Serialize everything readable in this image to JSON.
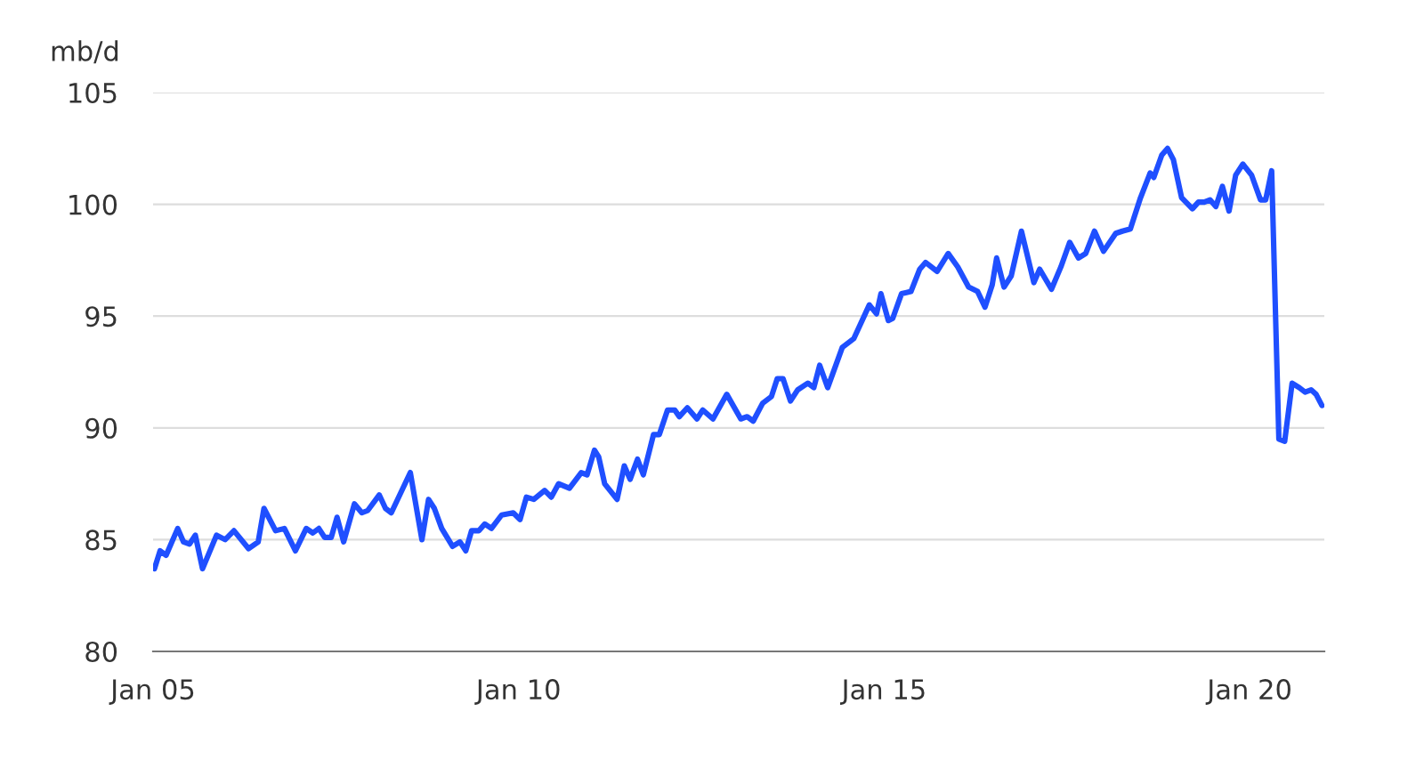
{
  "chart_data": {
    "type": "line",
    "ylabel": "mb/d",
    "x": [
      "2005-01-08",
      "2005-02-05",
      "2005-03-07",
      "2005-05-04",
      "2005-06-02",
      "2005-07-02",
      "2005-07-31",
      "2005-09-05",
      "2005-11-14",
      "2005-12-27",
      "2006-02-09",
      "2006-04-23",
      "2006-06-10",
      "2006-07-09",
      "2006-09-05",
      "2006-10-19",
      "2006-12-13",
      "2007-02-05",
      "2007-03-10",
      "2007-04-09",
      "2007-05-08",
      "2007-06-10",
      "2007-07-09",
      "2007-08-11",
      "2007-10-04",
      "2007-11-10",
      "2007-12-09",
      "2008-02-05",
      "2008-03-07",
      "2008-04-05",
      "2008-07-09",
      "2008-09-05",
      "2008-10-08",
      "2008-11-06",
      "2008-12-13",
      "2009-02-05",
      "2009-03-14",
      "2009-04-12",
      "2009-05-11",
      "2009-06-17",
      "2009-07-16",
      "2009-08-18",
      "2009-10-08",
      "2009-12-05",
      "2010-01-08",
      "2010-02-09",
      "2010-03-18",
      "2010-05-11",
      "2010-06-13",
      "2010-07-20",
      "2010-09-12",
      "2010-11-10",
      "2010-12-09",
      "2011-01-15",
      "2011-02-05",
      "2011-03-07",
      "2011-05-08",
      "2011-06-13",
      "2011-07-12",
      "2011-08-18",
      "2011-09-16",
      "2011-11-06",
      "2011-12-05",
      "2012-01-15",
      "2012-02-20",
      "2012-03-14",
      "2012-04-23",
      "2012-06-10",
      "2012-07-09",
      "2012-08-29",
      "2012-11-06",
      "2013-01-15",
      "2013-02-16",
      "2013-03-18",
      "2013-05-04",
      "2013-06-17",
      "2013-07-16",
      "2013-08-14",
      "2013-09-20",
      "2013-10-26",
      "2013-12-16",
      "2014-01-15",
      "2014-02-13",
      "2014-03-25",
      "2014-06-06",
      "2014-08-03",
      "2014-10-19",
      "2014-11-24",
      "2014-12-16",
      "2015-01-22",
      "2015-02-13",
      "2015-03-29",
      "2015-05-15",
      "2015-06-28",
      "2015-07-27",
      "2015-09-23",
      "2015-11-17",
      "2016-01-04",
      "2016-02-27",
      "2016-04-12",
      "2016-05-19",
      "2016-06-24",
      "2016-07-16",
      "2016-08-22",
      "2016-09-27",
      "2016-11-17",
      "2017-01-18",
      "2017-02-16",
      "2017-04-16",
      "2017-06-02",
      "2017-07-16",
      "2017-08-29",
      "2017-10-04",
      "2017-11-17",
      "2018-01-01",
      "2018-03-03",
      "2018-04-05",
      "2018-05-15",
      "2018-07-05",
      "2018-08-22",
      "2018-09-09",
      "2018-10-19",
      "2018-11-17",
      "2018-12-16",
      "2019-01-26",
      "2019-03-21",
      "2019-04-20",
      "2019-05-19",
      "2019-06-17",
      "2019-07-16",
      "2019-08-18",
      "2019-09-20",
      "2019-10-23",
      "2019-11-28",
      "2020-01-11",
      "2020-02-24",
      "2020-03-21",
      "2020-04-20",
      "2020-05-26",
      "2020-06-24",
      "2020-07-31",
      "2020-09-05",
      "2020-10-04",
      "2020-11-03",
      "2020-11-28",
      "2020-12-27"
    ],
    "series": [
      {
        "color": "#1f4fff",
        "values": [
          83.7,
          84.5,
          84.3,
          85.5,
          84.9,
          84.8,
          85.2,
          83.7,
          85.2,
          85.0,
          85.4,
          84.6,
          84.9,
          86.4,
          85.4,
          85.5,
          84.5,
          85.5,
          85.3,
          85.5,
          85.1,
          85.1,
          86.0,
          84.9,
          86.6,
          86.2,
          86.3,
          87.0,
          86.4,
          86.2,
          88.0,
          85.0,
          86.8,
          86.4,
          85.5,
          84.7,
          84.9,
          84.5,
          85.4,
          85.4,
          85.7,
          85.5,
          86.1,
          86.2,
          85.9,
          86.9,
          86.8,
          87.2,
          86.9,
          87.5,
          87.3,
          88.0,
          87.9,
          89.0,
          88.7,
          87.5,
          86.8,
          88.3,
          87.7,
          88.6,
          87.9,
          89.7,
          89.7,
          90.8,
          90.8,
          90.5,
          90.9,
          90.4,
          90.8,
          90.4,
          91.5,
          90.4,
          90.5,
          90.3,
          91.1,
          91.4,
          92.2,
          92.2,
          91.2,
          91.7,
          92.0,
          91.8,
          92.8,
          91.8,
          93.6,
          94.0,
          95.5,
          95.1,
          96.0,
          94.8,
          94.9,
          96.0,
          96.1,
          97.1,
          97.4,
          97.0,
          97.8,
          97.2,
          96.3,
          96.1,
          95.4,
          96.4,
          97.6,
          96.3,
          96.8,
          98.8,
          96.5,
          97.1,
          96.2,
          97.2,
          98.3,
          97.6,
          97.8,
          98.8,
          97.9,
          98.7,
          98.8,
          98.9,
          100.3,
          101.4,
          101.2,
          102.2,
          102.5,
          102.0,
          100.3,
          99.8,
          100.1,
          100.1,
          100.2,
          99.9,
          100.8,
          99.7,
          101.3,
          101.8,
          101.3,
          100.2,
          100.2,
          101.5,
          89.5,
          89.4,
          92.0,
          91.8,
          91.6,
          91.7,
          91.5,
          91.0
        ]
      }
    ],
    "xlim": [
      "2005-01-01",
      "2021-01-08"
    ],
    "ylim": [
      80,
      105
    ],
    "xticks": [
      {
        "value": "2005-01-01",
        "label": "Jan 05"
      },
      {
        "value": "2010-01-01",
        "label": "Jan 10"
      },
      {
        "value": "2015-01-01",
        "label": "Jan 15"
      },
      {
        "value": "2020-01-01",
        "label": "Jan 20"
      }
    ],
    "yticks": [
      80,
      85,
      90,
      95,
      100,
      105
    ],
    "grid": "y",
    "marker": "none",
    "line_style": "solid"
  }
}
